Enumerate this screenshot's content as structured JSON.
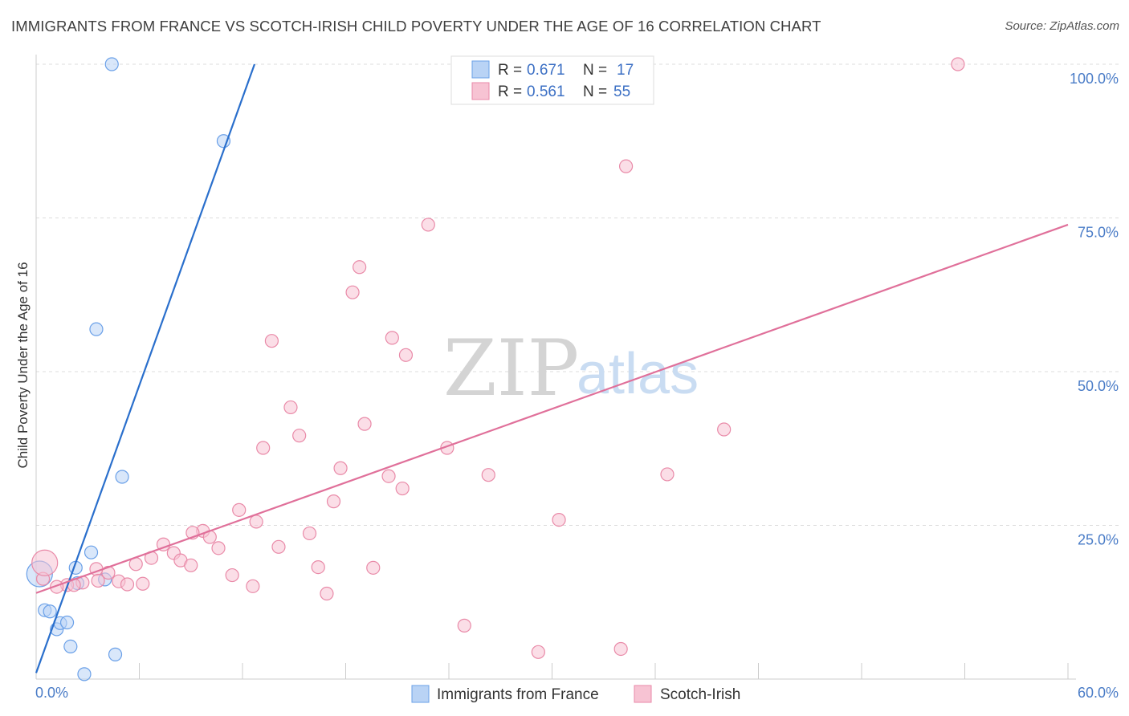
{
  "title": "IMMIGRANTS FROM FRANCE VS SCOTCH-IRISH CHILD POVERTY UNDER THE AGE OF 16 CORRELATION CHART",
  "source": "Source: ZipAtlas.com",
  "watermark": {
    "zip": "ZIP",
    "atlas": "atlas"
  },
  "colors": {
    "blue": "#6aa0e8",
    "blue_fill": "#b9d3f5",
    "blue_line": "#2a6fcc",
    "pink": "#e98aa8",
    "pink_fill": "#f7c3d3",
    "pink_line": "#e0709a",
    "tick_text": "#4a7cc7"
  },
  "legend": {
    "r_label": "R =",
    "n_label": "N =",
    "rows": [
      {
        "r": "0.671",
        "n": "17",
        "color": "blue"
      },
      {
        "r": "0.561",
        "n": "55",
        "color": "pink"
      }
    ]
  },
  "chart_data": {
    "type": "scatter",
    "title": "IMMIGRANTS FROM FRANCE VS SCOTCH-IRISH CHILD POVERTY UNDER THE AGE OF 16 CORRELATION CHART",
    "xlabel": "",
    "ylabel": "Child Poverty Under the Age of 16",
    "xlim": [
      0,
      60
    ],
    "ylim": [
      0,
      100
    ],
    "x_tick_labels": [
      "0.0%",
      "60.0%"
    ],
    "y_ticks": [
      25,
      50,
      75,
      100
    ],
    "y_tick_labels": [
      "25.0%",
      "50.0%",
      "75.0%",
      "100.0%"
    ],
    "grid": true,
    "legend_position": "top-center",
    "series": [
      {
        "name": "Immigrants from France",
        "color": "blue",
        "points": [
          [
            4.4,
            100
          ],
          [
            10.9,
            87.5
          ],
          [
            3.5,
            56.9
          ],
          [
            5.0,
            32.9
          ],
          [
            3.2,
            20.6
          ],
          [
            2.3,
            18.1
          ],
          [
            2.4,
            15.6
          ],
          [
            4.0,
            16.2
          ],
          [
            0.2,
            17.1
          ],
          [
            0.5,
            11.2
          ],
          [
            0.8,
            11.0
          ],
          [
            1.2,
            8.1
          ],
          [
            1.4,
            9.1
          ],
          [
            1.8,
            9.2
          ],
          [
            2.0,
            5.3
          ],
          [
            4.6,
            4.0
          ],
          [
            2.8,
            0.8
          ]
        ],
        "trend": {
          "x": [
            0.0,
            12.7
          ],
          "y": [
            1.0,
            100.0
          ]
        }
      },
      {
        "name": "Scotch-Irish",
        "color": "pink",
        "points": [
          [
            53.6,
            100
          ],
          [
            34.3,
            83.4
          ],
          [
            22.8,
            73.9
          ],
          [
            18.8,
            67.0
          ],
          [
            18.4,
            62.9
          ],
          [
            13.7,
            55.0
          ],
          [
            20.7,
            55.5
          ],
          [
            21.5,
            52.7
          ],
          [
            14.8,
            44.2
          ],
          [
            15.3,
            39.6
          ],
          [
            19.1,
            41.5
          ],
          [
            13.2,
            37.6
          ],
          [
            23.9,
            37.6
          ],
          [
            40.0,
            40.6
          ],
          [
            17.7,
            34.3
          ],
          [
            20.5,
            33.0
          ],
          [
            26.3,
            33.2
          ],
          [
            36.7,
            33.3
          ],
          [
            21.3,
            31.0
          ],
          [
            17.3,
            28.9
          ],
          [
            11.8,
            27.5
          ],
          [
            12.8,
            25.6
          ],
          [
            30.4,
            25.9
          ],
          [
            9.7,
            24.1
          ],
          [
            9.1,
            23.8
          ],
          [
            10.1,
            23.1
          ],
          [
            15.9,
            23.7
          ],
          [
            7.4,
            21.9
          ],
          [
            10.6,
            21.3
          ],
          [
            8.0,
            20.5
          ],
          [
            14.1,
            21.5
          ],
          [
            6.7,
            19.7
          ],
          [
            8.4,
            19.3
          ],
          [
            5.8,
            18.7
          ],
          [
            9.0,
            18.5
          ],
          [
            16.4,
            18.2
          ],
          [
            19.6,
            18.1
          ],
          [
            3.5,
            17.9
          ],
          [
            4.2,
            17.3
          ],
          [
            11.4,
            16.9
          ],
          [
            12.6,
            15.1
          ],
          [
            3.6,
            16.0
          ],
          [
            4.8,
            15.9
          ],
          [
            5.3,
            15.4
          ],
          [
            6.2,
            15.5
          ],
          [
            2.7,
            15.7
          ],
          [
            1.8,
            15.3
          ],
          [
            1.2,
            15.0
          ],
          [
            0.4,
            16.3
          ],
          [
            16.9,
            13.9
          ],
          [
            24.9,
            8.7
          ],
          [
            29.2,
            4.4
          ],
          [
            34.0,
            4.9
          ],
          [
            0.5,
            18.9
          ],
          [
            2.2,
            15.3
          ]
        ],
        "trend": {
          "x": [
            0.0,
            60.0
          ],
          "y": [
            14.0,
            73.9
          ]
        }
      }
    ]
  },
  "bottom_legend": [
    {
      "label": "Immigrants from France",
      "color": "blue"
    },
    {
      "label": "Scotch-Irish",
      "color": "pink"
    }
  ]
}
